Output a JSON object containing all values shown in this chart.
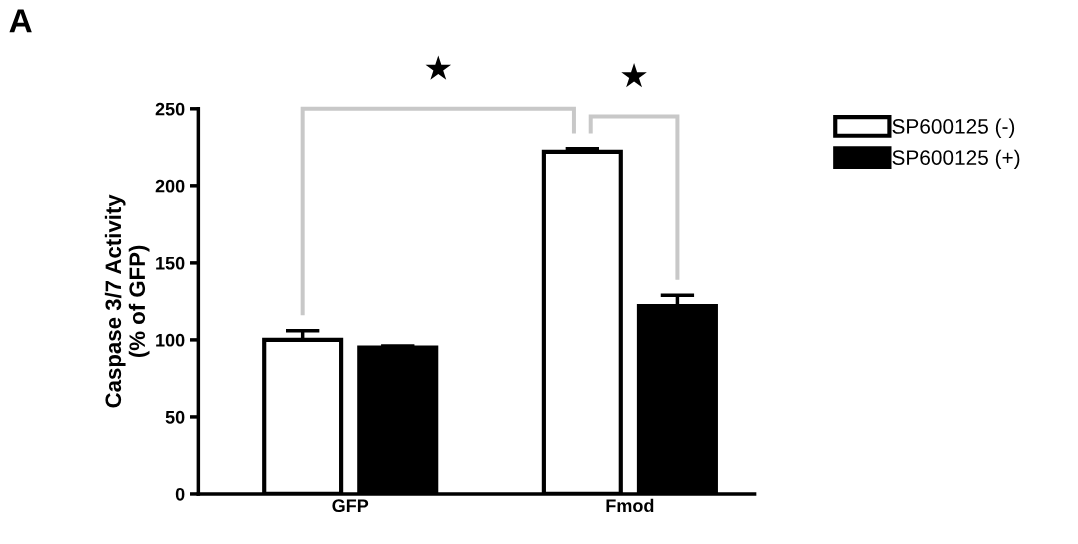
{
  "chart_data": {
    "type": "bar",
    "ylabel": "Caspase 3/7 Activity\n(% of GFP)",
    "categories": [
      "GFP",
      "Fmod"
    ],
    "series": [
      {
        "name": "SP600125 (-)",
        "color": "#ffffff",
        "values": [
          100,
          222
        ],
        "errors": [
          [
            100,
            106
          ],
          [
            222,
            224
          ]
        ]
      },
      {
        "name": "SP600125 (+)",
        "color": "#000000",
        "values": [
          95,
          122
        ],
        "errors": [
          [
            95,
            96
          ],
          [
            122,
            129
          ]
        ]
      }
    ],
    "ylim": [
      0,
      250
    ],
    "yticks": [
      0,
      50,
      100,
      150,
      200,
      250
    ],
    "grid": false,
    "legend": "right",
    "annotations": [
      "A",
      "★",
      "★"
    ]
  }
}
